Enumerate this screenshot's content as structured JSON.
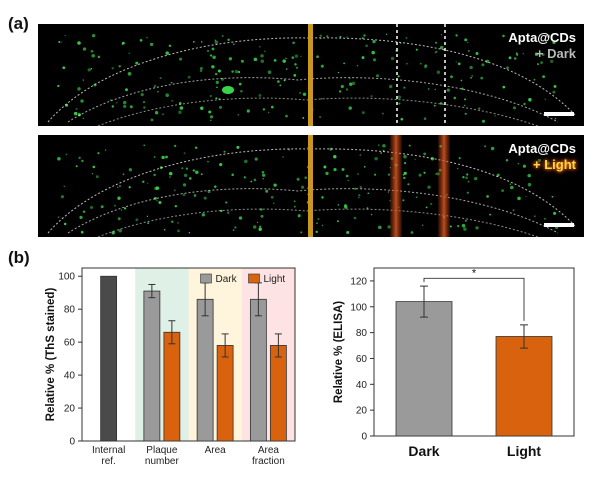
{
  "figure": {
    "panel_a_label": "(a)",
    "panel_b_label": "(b)"
  },
  "micrographs": [
    {
      "line1": "Apta@CDs",
      "line2": "+ Dark",
      "variant": "dark"
    },
    {
      "line1": "Apta@CDs",
      "line2": "+ Light",
      "variant": "light"
    }
  ],
  "colors": {
    "dark_bar": "#9a9a9a",
    "light_bar": "#d9620f",
    "internal_bar": "#4a4a4a",
    "bg_plaque_number": "#dff0e6",
    "bg_area": "#fff5dd",
    "bg_area_fraction": "#fde3e3",
    "stain": "#39d44a",
    "laser": "#c3441c",
    "midline": "#c9961e"
  },
  "chart_data": [
    {
      "type": "bar",
      "ylabel": "Relative % (ThS stained)",
      "ylim": [
        0,
        105
      ],
      "yticks": [
        0,
        20,
        40,
        60,
        80,
        100
      ],
      "legend": [
        "Dark",
        "Light"
      ],
      "legend_position": "top-right",
      "categories": [
        {
          "name": "Internal ref.",
          "lines": [
            "Internal",
            "ref."
          ],
          "bars": [
            {
              "series": "internal",
              "value": 100,
              "error": null
            }
          ]
        },
        {
          "name": "Plaque number",
          "lines": [
            "Plaque",
            "number"
          ],
          "bars": [
            {
              "series": "Dark",
              "value": 91,
              "error": 4
            },
            {
              "series": "Light",
              "value": 66,
              "error": 7
            }
          ]
        },
        {
          "name": "Area",
          "lines": [
            "Area"
          ],
          "bars": [
            {
              "series": "Dark",
              "value": 86,
              "error": 10
            },
            {
              "series": "Light",
              "value": 58,
              "error": 7
            }
          ]
        },
        {
          "name": "Area fraction",
          "lines": [
            "Area",
            "fraction"
          ],
          "bars": [
            {
              "series": "Dark",
              "value": 86,
              "error": 10
            },
            {
              "series": "Light",
              "value": 58,
              "error": 7
            }
          ]
        }
      ]
    },
    {
      "type": "bar",
      "ylabel": "Relative % (ELISA)",
      "ylim": [
        0,
        130
      ],
      "yticks": [
        0,
        20,
        40,
        60,
        80,
        100,
        120
      ],
      "categories": [
        "Dark",
        "Light"
      ],
      "values": [
        104,
        77
      ],
      "errors": [
        12,
        9
      ],
      "significance": "*"
    }
  ]
}
